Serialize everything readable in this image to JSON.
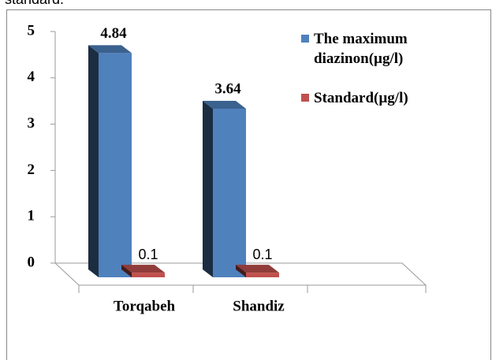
{
  "header_text": "standard.",
  "chart_data": {
    "type": "bar3d",
    "categories": [
      "Torqabeh",
      "Shandiz"
    ],
    "series": [
      {
        "name": "The maximum diazinon(µg/l)",
        "color": "#4f81bd",
        "values": [
          4.84,
          3.64
        ]
      },
      {
        "name": "Standard(µg/l)",
        "color": "#c0504d",
        "values": [
          0.1,
          0.1
        ]
      }
    ],
    "ylim": [
      0,
      5
    ],
    "yticks": [
      0,
      1,
      2,
      3,
      4,
      5
    ],
    "legend": "top-right"
  }
}
